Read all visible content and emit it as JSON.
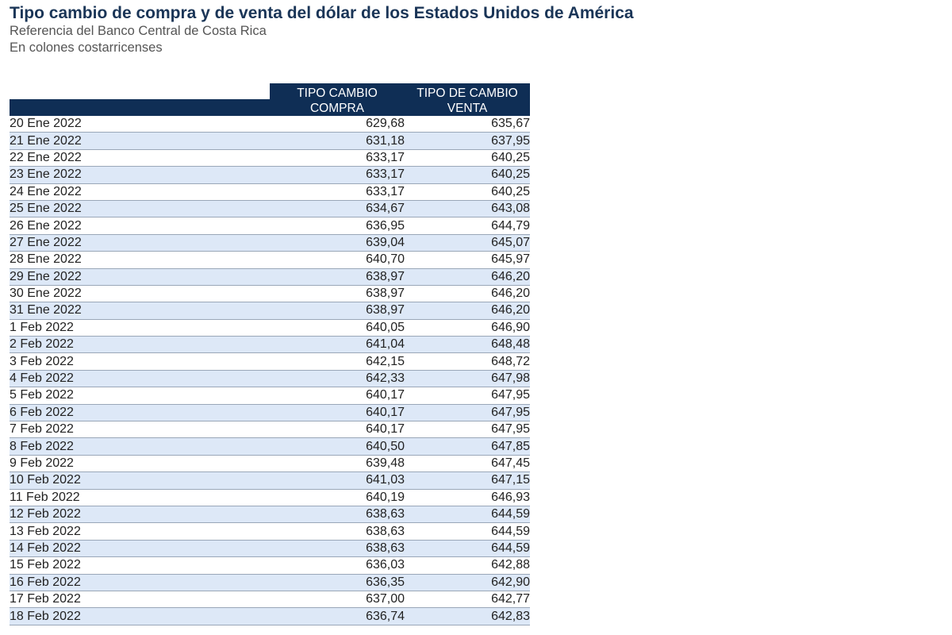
{
  "header": {
    "title": "Tipo cambio de compra y de venta del dólar de los Estados Unidos de América",
    "subtitle_1": "Referencia del Banco Central de Costa Rica",
    "subtitle_2": "En colones costarricenses"
  },
  "table": {
    "columns": [
      "",
      "TIPO CAMBIO COMPRA",
      "TIPO DE CAMBIO VENTA"
    ],
    "column_lines": {
      "compra": [
        "TIPO CAMBIO",
        "COMPRA"
      ],
      "venta": [
        "TIPO DE CAMBIO",
        "VENTA"
      ]
    },
    "rows": [
      [
        "20 Ene 2022",
        "629,68",
        "635,67"
      ],
      [
        "21 Ene 2022",
        "631,18",
        "637,95"
      ],
      [
        "22 Ene 2022",
        "633,17",
        "640,25"
      ],
      [
        "23 Ene 2022",
        "633,17",
        "640,25"
      ],
      [
        "24 Ene 2022",
        "633,17",
        "640,25"
      ],
      [
        "25 Ene 2022",
        "634,67",
        "643,08"
      ],
      [
        "26 Ene 2022",
        "636,95",
        "644,79"
      ],
      [
        "27 Ene 2022",
        "639,04",
        "645,07"
      ],
      [
        "28 Ene 2022",
        "640,70",
        "645,97"
      ],
      [
        "29 Ene 2022",
        "638,97",
        "646,20"
      ],
      [
        "30 Ene 2022",
        "638,97",
        "646,20"
      ],
      [
        "31 Ene 2022",
        "638,97",
        "646,20"
      ],
      [
        "1 Feb 2022",
        "640,05",
        "646,90"
      ],
      [
        "2 Feb 2022",
        "641,04",
        "648,48"
      ],
      [
        "3 Feb 2022",
        "642,15",
        "648,72"
      ],
      [
        "4 Feb 2022",
        "642,33",
        "647,98"
      ],
      [
        "5 Feb 2022",
        "640,17",
        "647,95"
      ],
      [
        "6 Feb 2022",
        "640,17",
        "647,95"
      ],
      [
        "7 Feb 2022",
        "640,17",
        "647,95"
      ],
      [
        "8 Feb 2022",
        "640,50",
        "647,85"
      ],
      [
        "9 Feb 2022",
        "639,48",
        "647,45"
      ],
      [
        "10 Feb 2022",
        "641,03",
        "647,15"
      ],
      [
        "11 Feb 2022",
        "640,19",
        "646,93"
      ],
      [
        "12 Feb 2022",
        "638,63",
        "644,59"
      ],
      [
        "13 Feb 2022",
        "638,63",
        "644,59"
      ],
      [
        "14 Feb 2022",
        "638,63",
        "644,59"
      ],
      [
        "15 Feb 2022",
        "636,03",
        "642,88"
      ],
      [
        "16 Feb 2022",
        "636,35",
        "642,90"
      ],
      [
        "17 Feb 2022",
        "637,00",
        "642,77"
      ],
      [
        "18 Feb 2022",
        "636,74",
        "642,83"
      ]
    ]
  },
  "colors": {
    "header_bg": "#0f2e55",
    "title": "#1a3557",
    "stripe": "#dde8f7",
    "row_border": "#9aa7b8"
  }
}
